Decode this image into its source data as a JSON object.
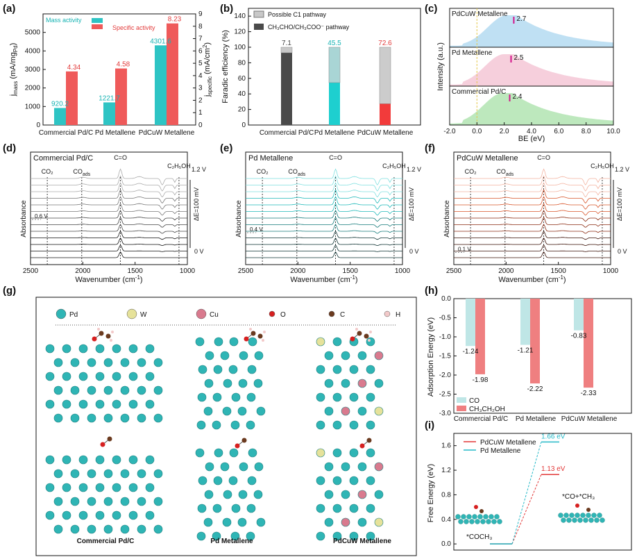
{
  "panel_labels": [
    "(a)",
    "(b)",
    "(c)",
    "(d)",
    "(e)",
    "(f)",
    "(g)",
    "(h)",
    "(i)"
  ],
  "chart_data": [
    {
      "panel": "a",
      "type": "bar",
      "categories": [
        "Commercial Pd/C",
        "Pd Metallene",
        "PdCuW Metallene"
      ],
      "series": [
        {
          "name": "Mass activity",
          "values": [
            920.2,
            1221.7,
            4301.6
          ],
          "labels": [
            "920.2",
            "1221.7",
            "4301.6"
          ],
          "color": "#2ec4c4",
          "axis": "left"
        },
        {
          "name": "Specific activity",
          "values": [
            4.34,
            4.58,
            8.23
          ],
          "labels": [
            "4.34",
            "4.58",
            "8.23"
          ],
          "color": "#ef5a5a",
          "axis": "right"
        }
      ],
      "ylabel_main": "j",
      "ylabel_sub": "mass",
      "ylabel_rest": " (mA/mg",
      "ylabel_sub2": "Pd",
      "ylabel_end": ")",
      "y2label_main": "j",
      "y2label_sub": "specific",
      "y2label_rest": " (mA/cm",
      "y2label_sup": "2",
      "y2label_end": ")",
      "ylim": [
        0,
        6000
      ],
      "yticks": [
        0,
        1000,
        2000,
        3000,
        4000,
        5000
      ],
      "y2lim": [
        0,
        9
      ],
      "y2ticks": [
        0,
        1,
        2,
        3,
        4,
        5,
        6,
        7,
        8,
        9
      ]
    },
    {
      "panel": "b",
      "type": "bar",
      "stacked": true,
      "categories": [
        "Commercial Pd/C",
        "Pd Metallene",
        "PdCuW Metallene"
      ],
      "series": [
        {
          "name": "CH3CHO/CH3COO- pathway",
          "values": [
            92.9,
            54.5,
            27.4
          ]
        },
        {
          "name": "Possible C1 pathway",
          "values": [
            7.1,
            45.5,
            72.6
          ]
        }
      ],
      "top_labels": [
        "7.1",
        "45.5",
        "72.6"
      ],
      "colors_dark": [
        "#4a4a4a",
        "#1ecfcf",
        "#f23b3b"
      ],
      "colors_light": [
        "#c8c8c8",
        "#a9d5d5",
        "#cccccc"
      ],
      "legend": [
        "Possible C1 pathway",
        "CH₃CHO/CH₃COO⁻ pathway"
      ],
      "ylabel": "Faradic efficiency (%)",
      "ylim": [
        0,
        150
      ],
      "yticks": [
        0,
        20,
        40,
        60,
        80,
        100,
        120,
        140
      ]
    },
    {
      "panel": "c",
      "type": "area",
      "subplots": [
        {
          "name": "PdCuW Metallene",
          "peak": "2.7",
          "peak_x": 2.7,
          "color": "#bfe0f3"
        },
        {
          "name": "Pd Metallene",
          "peak": "2.5",
          "peak_x": 2.5,
          "color": "#f6cfdc"
        },
        {
          "name": "Commercial Pd/C",
          "peak": "2.4",
          "peak_x": 2.4,
          "color": "#bde8bd"
        }
      ],
      "xlabel": "BE (eV)",
      "ylabel": "Intensity (a.u.)",
      "xlim": [
        -2,
        10
      ],
      "xticks": [
        "-2.0",
        "0.0",
        "2.0",
        "4.0",
        "6.0",
        "8.0",
        "10.0"
      ]
    },
    {
      "panel": "d",
      "type": "line",
      "title": "Commercial Pd/C",
      "xlabel": "Wavenumber (cm",
      "xlabel_sup": "-1",
      "xlabel_end": ")",
      "ylabel": "Absorbance",
      "xlim": [
        2500,
        1000
      ],
      "xticks": [
        "2500",
        "2000",
        "1500",
        "1000"
      ],
      "markers": [
        "CO₂",
        "CO",
        "C=O",
        "C₂H₅OH"
      ],
      "start_label": "0.6 V",
      "top_label": "1.2 V",
      "bottom_label": "0 V",
      "step_label": "ΔE=100 mV",
      "palette": [
        "#111111",
        "#444444",
        "#777777",
        "#aaaaaa"
      ]
    },
    {
      "panel": "e",
      "type": "line",
      "title": "Pd Metallene",
      "xlabel": "Wavenumber (cm",
      "xlabel_sup": "-1",
      "xlabel_end": ")",
      "ylabel": "Absorbance",
      "xlim": [
        2500,
        1000
      ],
      "xticks": [
        "2500",
        "2000",
        "1500",
        "1000"
      ],
      "markers": [
        "CO₂",
        "CO",
        "C=O",
        "C₂H₅OH"
      ],
      "start_label": "0.4 V",
      "top_label": "1.2 V",
      "bottom_label": "0 V",
      "step_label": "ΔE=100 mV",
      "palette": [
        "#0b3030",
        "#137a7a",
        "#1fb9b9",
        "#7fe0e0"
      ]
    },
    {
      "panel": "f",
      "type": "line",
      "title": "PdCuW Metallene",
      "xlabel": "Wavenumber (cm",
      "xlabel_sup": "-1",
      "xlabel_end": ")",
      "ylabel": "Absorbance",
      "xlim": [
        2500,
        1000
      ],
      "xticks": [
        "2500",
        "2000",
        "1500",
        "1000"
      ],
      "markers": [
        "CO₂",
        "CO",
        "C=O",
        "C₂H₅OH"
      ],
      "start_label": "0.1 V",
      "top_label": "1.2 V",
      "bottom_label": "0 V",
      "step_label": "ΔE=100 mV",
      "palette": [
        "#3a0f05",
        "#8a2a10",
        "#d8552a",
        "#f3b3a0"
      ]
    },
    {
      "panel": "h",
      "type": "bar",
      "categories": [
        "Commercial Pd/C",
        "Pd Metallene",
        "PdCuW Metallene"
      ],
      "series": [
        {
          "name": "CO",
          "values": [
            -1.24,
            -1.21,
            -0.83
          ],
          "labels": [
            "-1.24",
            "-1.21",
            "-0.83"
          ],
          "color": "#bfe6e6"
        },
        {
          "name": "CH3CH2OH",
          "values": [
            -1.98,
            -2.22,
            -2.33
          ],
          "labels": [
            "-1.98",
            "-2.22",
            "-2.33"
          ],
          "color": "#ef7f80"
        }
      ],
      "legend": [
        "CO",
        "CH₃CH₂OH"
      ],
      "ylabel": "Adsorption Energy (eV)",
      "ylim": [
        -3.0,
        0.0
      ],
      "yticks": [
        "0.0",
        "-0.5",
        "-1.0",
        "-1.5",
        "-2.0",
        "-2.5",
        "-3.0"
      ]
    },
    {
      "panel": "i",
      "type": "line",
      "series": [
        {
          "name": "PdCuW Metallene",
          "values": [
            0.0,
            1.13
          ],
          "label": "1.13 eV",
          "color": "#e23636"
        },
        {
          "name": "Pd Metallene",
          "values": [
            0.0,
            1.66
          ],
          "label": "1.66 eV",
          "color": "#22b8c7"
        }
      ],
      "ylabel": "Free Energy (eV)",
      "ylim": [
        -0.1,
        1.8
      ],
      "yticks": [
        "0.0",
        "0.4",
        "0.8",
        "1.2",
        "1.6"
      ],
      "state_start": "*COCH₃",
      "state_end": "*CO+*CH₃"
    }
  ],
  "structures": {
    "legend": [
      {
        "name": "Pd",
        "color": "#2fb5b5"
      },
      {
        "name": "W",
        "color": "#e6e29a"
      },
      {
        "name": "Cu",
        "color": "#d97a8e"
      },
      {
        "name": "O",
        "color": "#d62020"
      },
      {
        "name": "C",
        "color": "#6b3a1f"
      },
      {
        "name": "H",
        "color": "#f2c9c9"
      }
    ],
    "captions": [
      "Commercial Pd/C",
      "Pd Metallene",
      "PdCuW Metallene"
    ]
  }
}
